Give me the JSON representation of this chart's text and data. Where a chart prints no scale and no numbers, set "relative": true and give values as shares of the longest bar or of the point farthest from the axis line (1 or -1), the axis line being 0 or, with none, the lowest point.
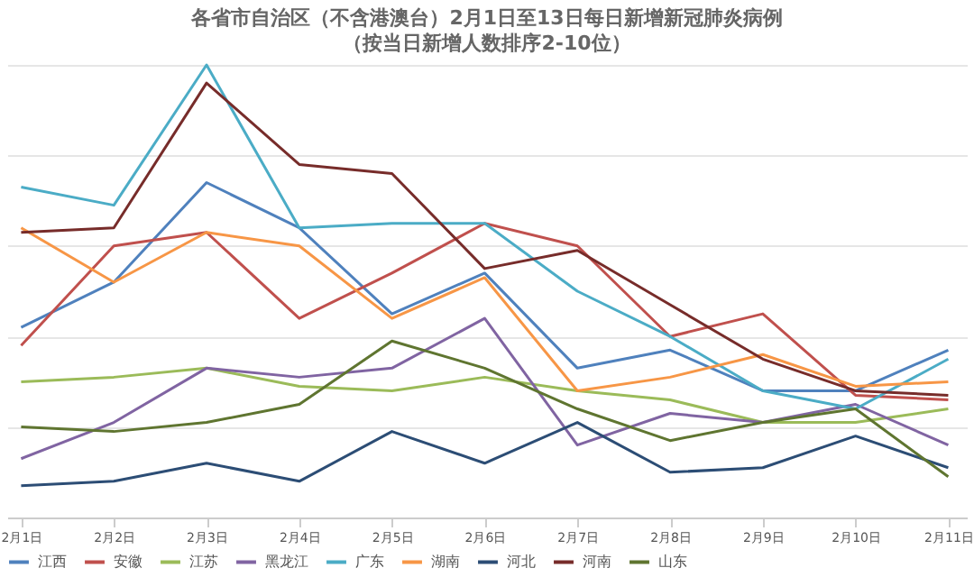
{
  "chart_data": {
    "type": "line",
    "relative": true,
    "title": "各省市自治区（不含港澳台）2月1日至13日每日新增新冠肺炎病例",
    "subtitle": "（按当日新增人数排序2-10位）",
    "categories": [
      "2月1日",
      "2月2日",
      "2月3日",
      "2月4日",
      "2月5日",
      "2月6日",
      "2月7日",
      "2月8日",
      "2月9日",
      "2月10日",
      "2月11日"
    ],
    "series": [
      {
        "name": "江西",
        "color": "#4f81bd",
        "values": [
          0.42,
          0.52,
          0.74,
          0.64,
          0.45,
          0.54,
          0.33,
          0.37,
          0.28,
          0.28,
          0.37
        ]
      },
      {
        "name": "安徽",
        "color": "#c0504d",
        "values": [
          0.38,
          0.6,
          0.63,
          0.44,
          0.54,
          0.65,
          0.6,
          0.4,
          0.45,
          0.27,
          0.26
        ]
      },
      {
        "name": "江苏",
        "color": "#9bbb59",
        "values": [
          0.3,
          0.31,
          0.33,
          0.29,
          0.28,
          0.31,
          0.28,
          0.26,
          0.21,
          0.21,
          0.24
        ]
      },
      {
        "name": "黑龙江",
        "color": "#8064a2",
        "values": [
          0.13,
          0.21,
          0.33,
          0.31,
          0.33,
          0.44,
          0.16,
          0.23,
          0.21,
          0.25,
          0.16
        ]
      },
      {
        "name": "广东",
        "color": "#4bacc6",
        "values": [
          0.73,
          0.69,
          1,
          0.64,
          0.65,
          0.65,
          0.5,
          0.4,
          0.28,
          0.24,
          0.35
        ]
      },
      {
        "name": "湖南",
        "color": "#f79646",
        "values": [
          0.64,
          0.52,
          0.63,
          0.6,
          0.44,
          0.53,
          0.28,
          0.31,
          0.36,
          0.29,
          0.3
        ]
      },
      {
        "name": "河北",
        "color": "#2c4d75",
        "values": [
          0.07,
          0.08,
          0.12,
          0.08,
          0.19,
          0.12,
          0.21,
          0.1,
          0.11,
          0.18,
          0.11
        ]
      },
      {
        "name": "河南",
        "color": "#772c2a",
        "values": [
          0.63,
          0.64,
          0.96,
          0.78,
          0.76,
          0.55,
          0.59,
          0.47,
          0.35,
          0.28,
          0.27
        ]
      },
      {
        "name": "山东",
        "color": "#5f7530",
        "values": [
          0.2,
          0.19,
          0.21,
          0.25,
          0.39,
          0.33,
          0.24,
          0.17,
          0.21,
          0.24,
          0.09
        ]
      }
    ],
    "grid": "y",
    "legend": "bottom",
    "marker": "none",
    "line_style": "solid"
  }
}
